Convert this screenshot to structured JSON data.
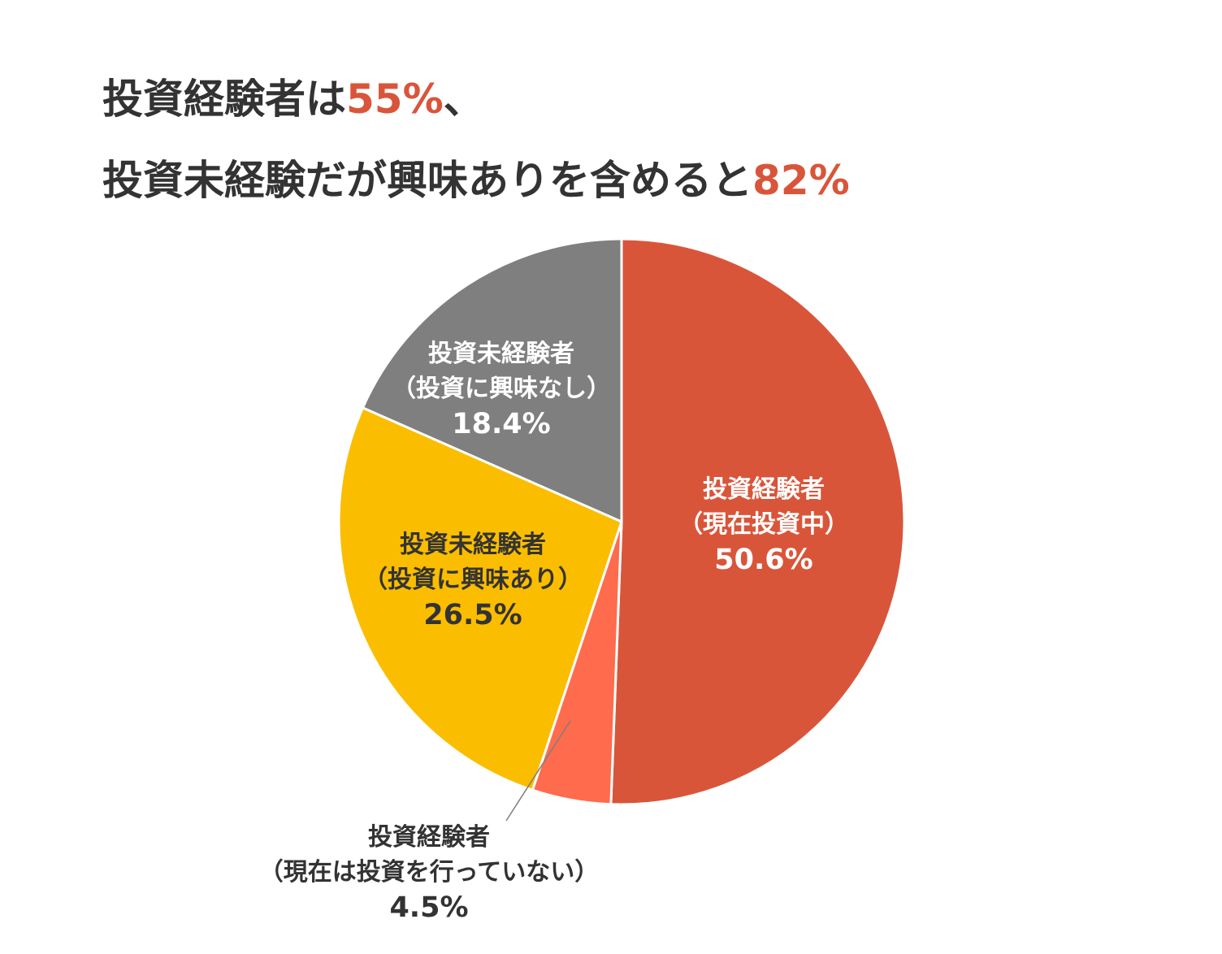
{
  "title": {
    "line1_prefix": "投資経験者は",
    "line1_highlight": "55%",
    "line1_suffix": "、",
    "line2_prefix": "投資未経験だが興味ありを含めると",
    "line2_highlight": "82%"
  },
  "colors": {
    "highlight": "#d9553a",
    "title_text": "#333333"
  },
  "chart_data": {
    "type": "pie",
    "start": "12 o'clock",
    "direction": "clockwise",
    "slices": [
      {
        "label_line1": "投資経験者",
        "label_line2": "（現在投資中）",
        "value": 50.6,
        "value_label": "50.6%",
        "color": "#d9553a",
        "text_color": "#ffffff"
      },
      {
        "label_line1": "投資経験者",
        "label_line2": "（現在は投資を行っていない）",
        "value": 4.5,
        "value_label": "4.5%",
        "color": "#ff6b4d",
        "text_color": "#333333",
        "label_outside": true
      },
      {
        "label_line1": "投資未経験者",
        "label_line2": "（投資に興味あり）",
        "value": 26.5,
        "value_label": "26.5%",
        "color": "#fbbd00",
        "text_color": "#333333"
      },
      {
        "label_line1": "投資未経験者",
        "label_line2": "（投資に興味なし）",
        "value": 18.4,
        "value_label": "18.4%",
        "color": "#7f7f7f",
        "text_color": "#ffffff"
      }
    ]
  }
}
